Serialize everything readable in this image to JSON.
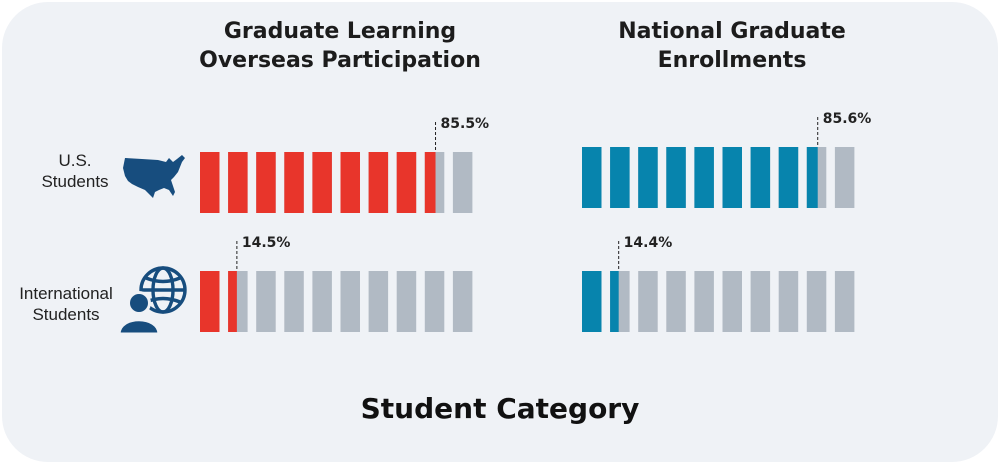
{
  "chart_data": {
    "type": "bar",
    "xlabel": "Student Category",
    "categories": [
      "U.S.\nStudents",
      "International\nStudents"
    ],
    "segments_per_bar": 10,
    "empty_color": "#b1bac4",
    "panels": [
      {
        "title": "Graduate Learning\nOverseas Participation",
        "color": "#e8352b",
        "values": [
          85.5,
          14.5
        ],
        "value_labels": [
          "85.5%",
          "14.5%"
        ]
      },
      {
        "title": "National Graduate\nEnrollments",
        "color": "#0784ad",
        "values": [
          85.6,
          14.4
        ],
        "value_labels": [
          "85.6%",
          "14.4%"
        ]
      }
    ]
  },
  "icons": {
    "us_students": "usa-map-icon",
    "international_students": "globe-people-icon",
    "icon_color": "#174d7e"
  }
}
